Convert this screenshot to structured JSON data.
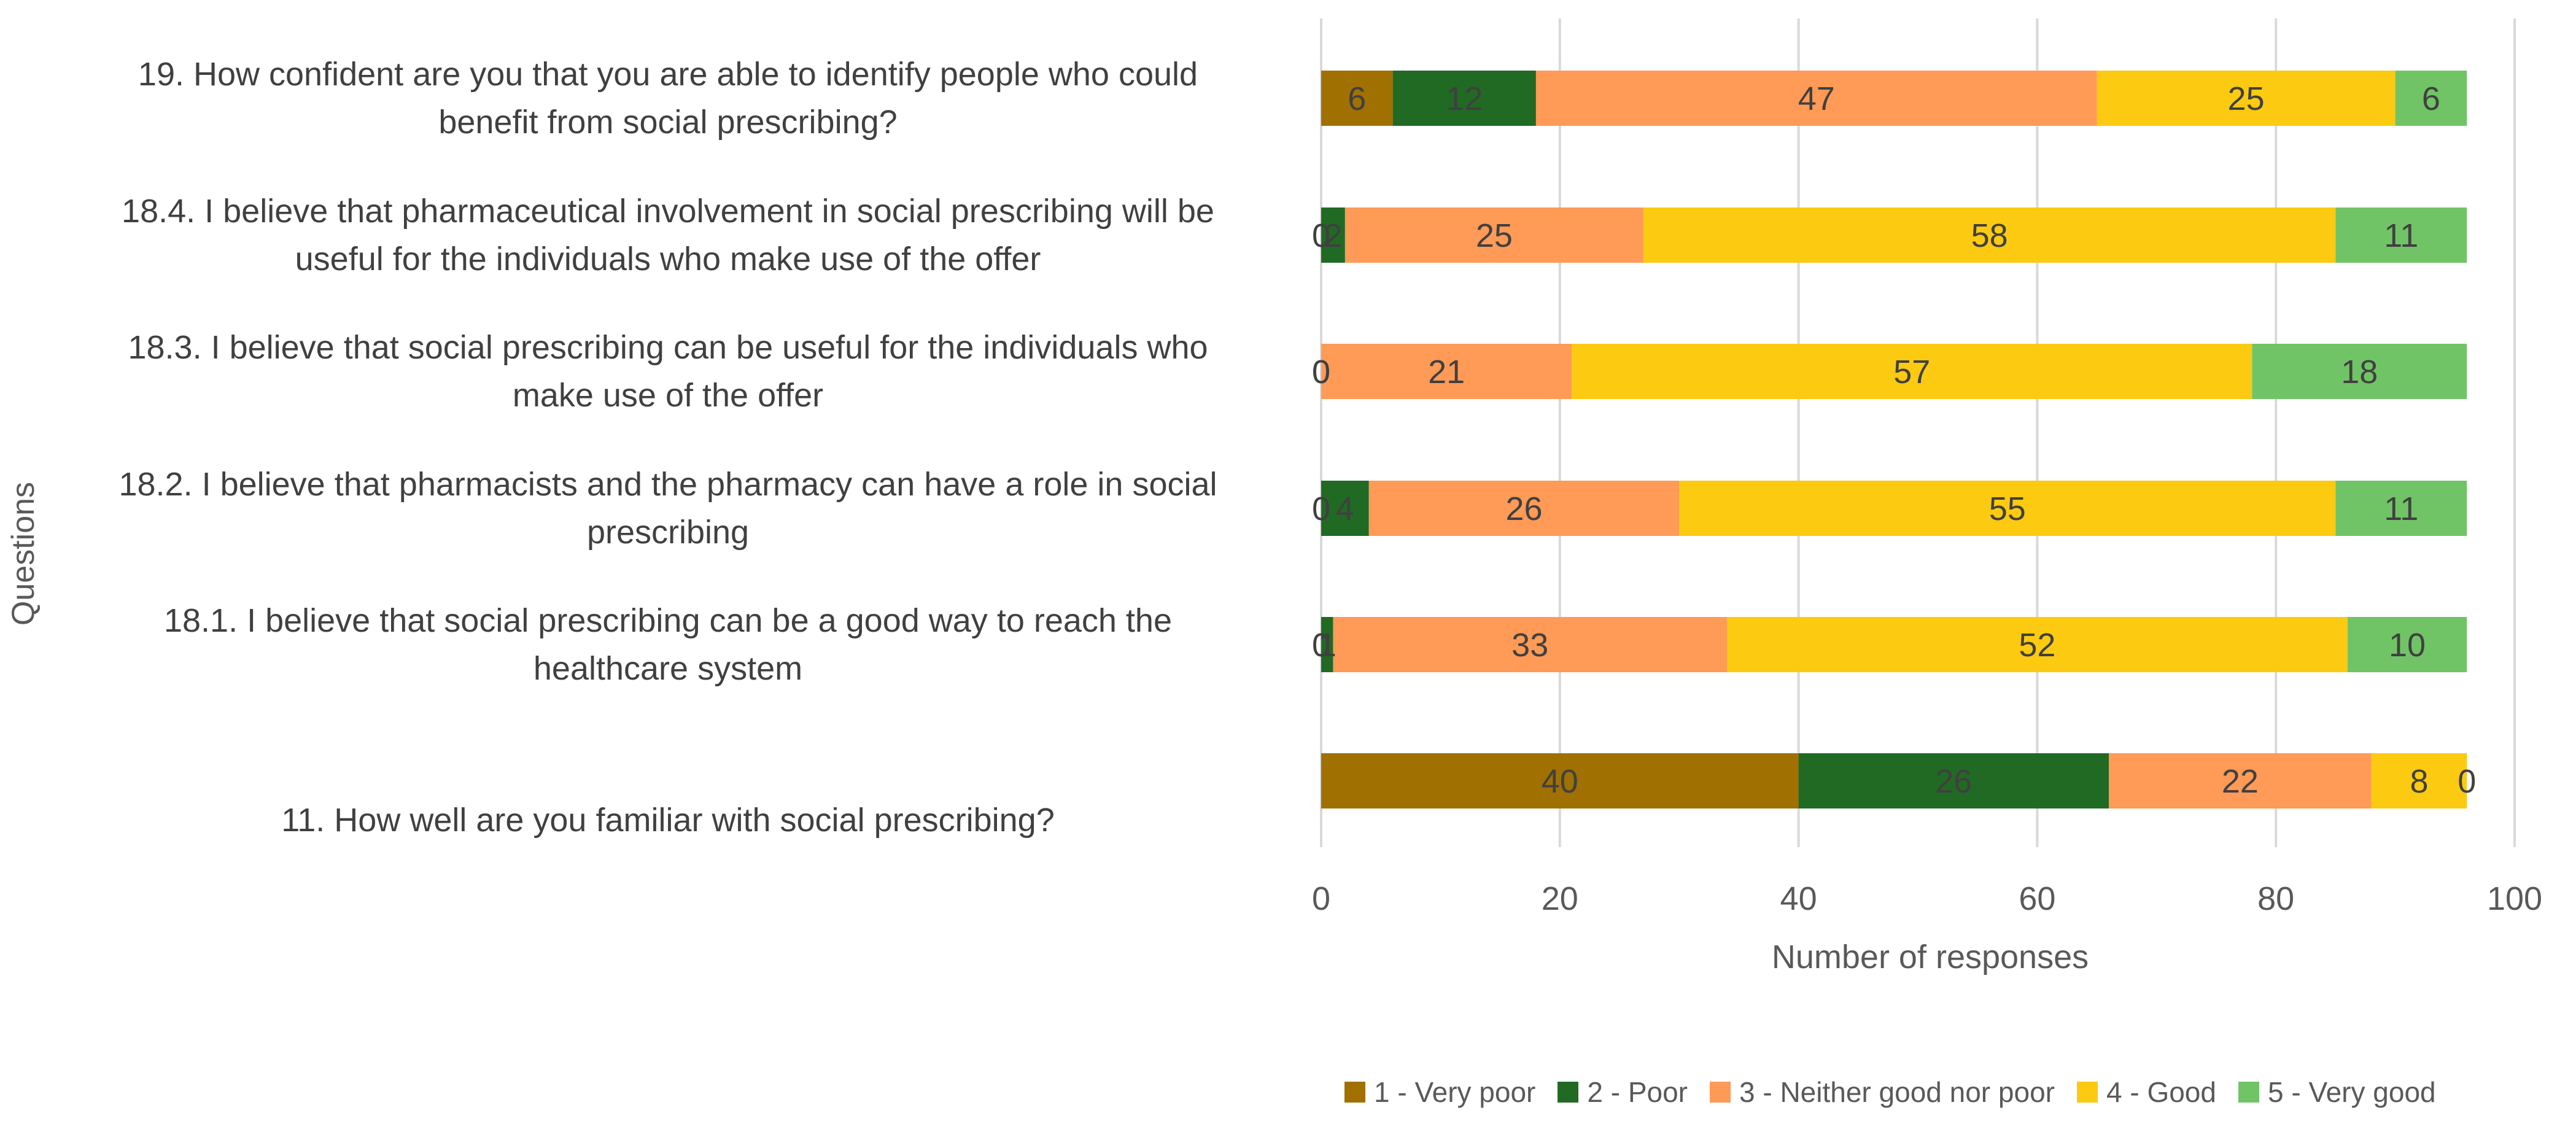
{
  "chart_data": {
    "type": "bar",
    "orientation": "horizontal",
    "stacked": true,
    "xlabel": "Number of responses",
    "ylabel": "Questions",
    "xlim": [
      0,
      100
    ],
    "xticks": [
      "0",
      "20",
      "40",
      "60",
      "80",
      "100"
    ],
    "grid": true,
    "legend_position": "bottom",
    "categories": [
      [
        "19. How confident are you that you are able to identify people who could",
        "benefit from social prescribing?"
      ],
      [
        "18.4. I believe that pharmaceutical involvement in social prescribing will be",
        "useful for the individuals who make use of the offer"
      ],
      [
        "18.3. I believe that social prescribing can be useful for the individuals who",
        "make use of the offer"
      ],
      [
        "18.2. I believe that pharmacists and the pharmacy can have a role in social",
        "prescribing"
      ],
      [
        "18.1. I believe that social prescribing can be a good way to reach the",
        "healthcare system"
      ],
      [
        "11. How well are you familiar with social prescribing?"
      ]
    ],
    "series": [
      {
        "name": "1 - Very poor",
        "color": "#A07000",
        "values": [
          6,
          0,
          0,
          0,
          0,
          40
        ]
      },
      {
        "name": "2 - Poor",
        "color": "#216A24",
        "values": [
          12,
          2,
          0,
          4,
          1,
          26
        ]
      },
      {
        "name": "3 - Neither good nor poor",
        "color": "#FF9A57",
        "values": [
          47,
          25,
          21,
          26,
          33,
          22
        ]
      },
      {
        "name": "4 - Good",
        "color": "#FCCA10",
        "values": [
          25,
          58,
          57,
          55,
          52,
          8
        ]
      },
      {
        "name": "5 - Very good",
        "color": "#70C466",
        "values": [
          6,
          11,
          18,
          11,
          10,
          0
        ]
      }
    ]
  }
}
